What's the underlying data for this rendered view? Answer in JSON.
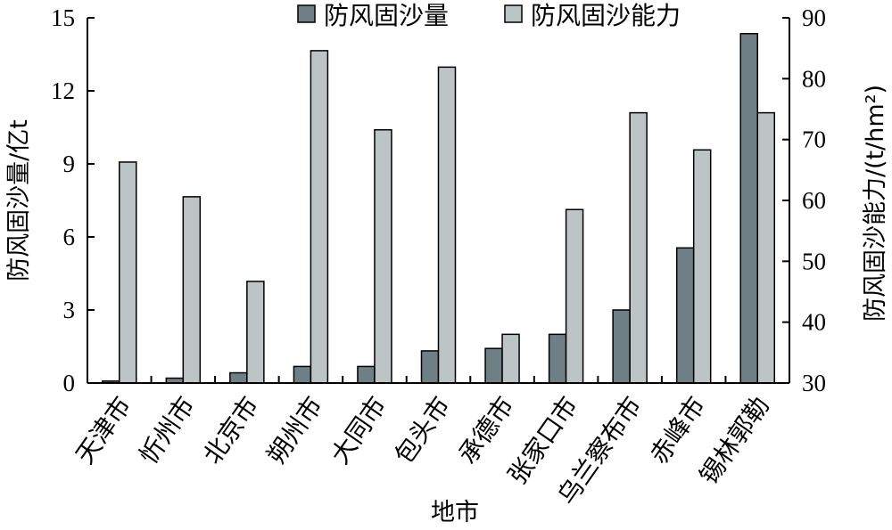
{
  "chart_data": {
    "type": "bar",
    "categories": [
      "天津市",
      "忻州市",
      "北京市",
      "朔州市",
      "大同市",
      "包头市",
      "承德市",
      "张家口市",
      "乌兰察布市",
      "赤峰市",
      "锡林郭勒"
    ],
    "series": [
      {
        "name": "防风固沙量",
        "axis": "left",
        "color": "#6f7f86",
        "values": [
          0.08,
          0.2,
          0.42,
          0.68,
          0.68,
          1.32,
          1.42,
          2.0,
          3.0,
          5.55,
          14.35
        ]
      },
      {
        "name": "防风固沙能力",
        "axis": "right",
        "color": "#bcc4c6",
        "values": [
          66.3,
          60.6,
          46.7,
          84.6,
          71.6,
          81.9,
          38.0,
          58.5,
          74.4,
          68.3,
          74.4
        ]
      }
    ],
    "xlabel": "地市",
    "ylabel_left": "防风固沙量/亿t",
    "ylabel_right": "防风固沙能力/(t/hm²)",
    "ylim_left": [
      0,
      15
    ],
    "yticks_left": [
      "0",
      "3",
      "6",
      "9",
      "12",
      "15"
    ],
    "ylim_right": [
      30,
      90
    ],
    "yticks_right": [
      "30",
      "40",
      "50",
      "60",
      "70",
      "80",
      "90"
    ],
    "grid": false,
    "legend_position": "top-center"
  }
}
